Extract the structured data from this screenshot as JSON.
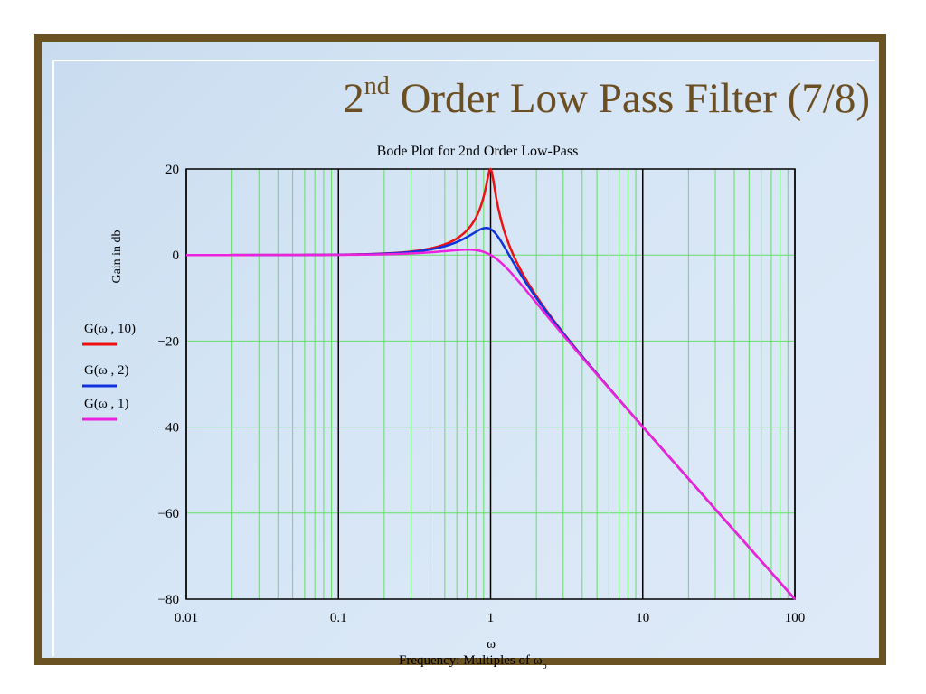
{
  "slide": {
    "title_main": "2",
    "title_sup": "nd",
    "title_rest": " Order Low Pass Filter (7/8)",
    "colors": {
      "frame": "#6b5222",
      "title": "#6b4e22",
      "background": "#d5e5f5"
    }
  },
  "chart_data": {
    "type": "line",
    "title": "Bode Plot for 2nd Order Low-Pass",
    "xlabel": "ω",
    "xlabel_sub": "Frequency: Multiples of  ω",
    "xlabel_sub_subscript": "o",
    "ylabel": "Gain in db",
    "x_scale": "log",
    "xlim": [
      0.01,
      100
    ],
    "ylim": [
      -80,
      20
    ],
    "x_ticks": [
      0.01,
      0.1,
      1,
      10,
      100
    ],
    "x_tick_labels": [
      "0.01",
      "0.1",
      "1",
      "10",
      "100"
    ],
    "y_ticks": [
      20,
      0,
      -20,
      -40,
      -60,
      -80
    ],
    "y_tick_labels": [
      "20",
      "0",
      "−20",
      "−40",
      "−60",
      "−80"
    ],
    "grid": true,
    "grid_color": "#66dd66",
    "legend_position": "left-outside",
    "series": [
      {
        "name": "G(ω , 10)",
        "color": "#ee1111",
        "Q": 10,
        "x": [
          0.01,
          0.1,
          0.3,
          0.5,
          0.7,
          0.8,
          0.9,
          0.95,
          1.0,
          1.05,
          1.1,
          1.2,
          1.5,
          2,
          3,
          5,
          10,
          30,
          100
        ],
        "values": [
          0,
          0.1,
          0.8,
          2.5,
          5.8,
          8.6,
          13.8,
          17.5,
          20,
          17.4,
          13.2,
          8.1,
          0.2,
          -9.5,
          -18.1,
          -27.6,
          -39.9,
          -59.1,
          -80
        ]
      },
      {
        "name": "G(ω , 2)",
        "color": "#1133dd",
        "Q": 2,
        "x": [
          0.01,
          0.1,
          0.3,
          0.5,
          0.7,
          0.8,
          0.9,
          0.95,
          1.0,
          1.05,
          1.1,
          1.2,
          1.5,
          2,
          3,
          5,
          10,
          30,
          100
        ],
        "values": [
          0,
          0.08,
          0.75,
          2.2,
          4.3,
          5.3,
          6.0,
          6.1,
          6.0,
          5.8,
          5.2,
          3.9,
          0.2,
          -5.9,
          -15.2,
          -26.2,
          -39.7,
          -59.0,
          -80
        ]
      },
      {
        "name": "G(ω , 1)",
        "color": "#ee22dd",
        "Q": 1,
        "x": [
          0.01,
          0.1,
          0.3,
          0.5,
          0.7,
          0.8,
          0.9,
          0.95,
          1.0,
          1.05,
          1.1,
          1.2,
          1.5,
          2,
          3,
          5,
          10,
          30,
          100
        ],
        "values": [
          0,
          0.07,
          0.6,
          1.5,
          1.6,
          1.3,
          0.6,
          0.3,
          0,
          -0.5,
          -1.0,
          -2.0,
          -5.3,
          -10.4,
          -18.6,
          -28.1,
          -40.0,
          -59.1,
          -80
        ]
      }
    ]
  }
}
